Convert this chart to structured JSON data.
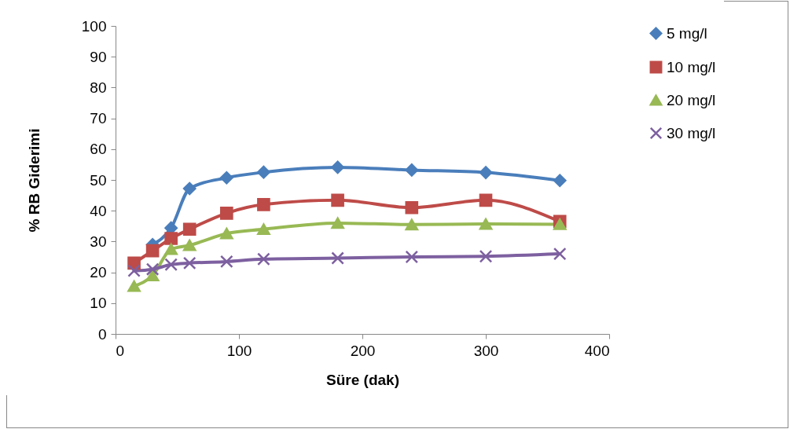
{
  "chart_data": {
    "type": "line",
    "xlabel": "Süre (dak)",
    "ylabel": "% RB Giderimi",
    "x": [
      15,
      30,
      45,
      60,
      90,
      120,
      180,
      240,
      300,
      360
    ],
    "series": [
      {
        "name": "5 mg/l",
        "color": "#4a7ebb",
        "marker": "diamond",
        "values": [
          null,
          29,
          34.4,
          47.2,
          50.7,
          52.5,
          54.1,
          53.2,
          52.4,
          49.8
        ]
      },
      {
        "name": "10 mg/l",
        "color": "#be4b48",
        "marker": "square",
        "values": [
          23,
          27,
          31,
          34,
          39.2,
          42,
          43.4,
          41,
          43.4,
          36.5
        ]
      },
      {
        "name": "20 mg/l",
        "color": "#98b954",
        "marker": "triangle",
        "values": [
          15.5,
          19,
          27.5,
          28.8,
          32.6,
          34,
          36,
          35.5,
          35.7,
          35.6
        ]
      },
      {
        "name": "30 mg/l",
        "color": "#7d60a0",
        "marker": "cross",
        "values": [
          20.5,
          21,
          22.5,
          23,
          23.5,
          24.3,
          24.6,
          25,
          25.2,
          26
        ]
      }
    ],
    "xlim": [
      0,
      400
    ],
    "xticks": [
      0,
      100,
      200,
      300,
      400
    ],
    "ylim": [
      0,
      100
    ],
    "yticks": [
      0,
      10,
      20,
      30,
      40,
      50,
      60,
      70,
      80,
      90,
      100
    ],
    "grid": false,
    "legend": "right"
  }
}
